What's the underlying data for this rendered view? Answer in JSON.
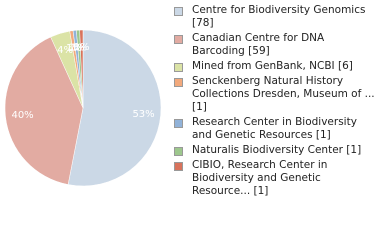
{
  "chart_data": {
    "type": "pie",
    "categories": [
      "Centre for Biodiversity Genomics [78]",
      "Canadian Centre for DNA Barcoding [59]",
      "Mined from GenBank, NCBI [6]",
      "Senckenberg Natural History Collections Dresden, Museum of ... [1]",
      "Research Center in Biodiversity and Genetic Resources [1]",
      "Naturalis Biodiversity Center [1]",
      "CIBIO, Research Center in Biodiversity and Genetic Resource... [1]"
    ],
    "values": [
      78,
      59,
      6,
      1,
      1,
      1,
      1
    ],
    "value_labels": [
      "53%",
      "40%",
      "4%",
      "1%",
      "1%",
      "1%",
      "1%"
    ],
    "colors": [
      "#cbd8e6",
      "#e2aba2",
      "#dbe3a6",
      "#f2a97c",
      "#91b2d8",
      "#9dc78d",
      "#d8735c"
    ]
  }
}
